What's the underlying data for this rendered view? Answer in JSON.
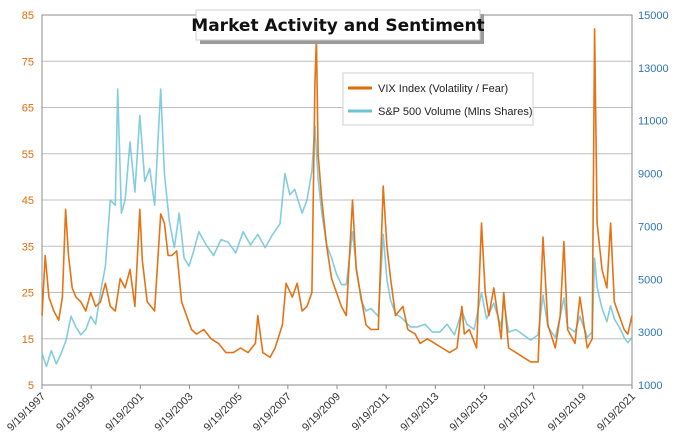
{
  "chart_data": {
    "type": "line",
    "title": "Market Activity and Sentiment",
    "xlabel": "",
    "ylabel_left": "",
    "ylabel_right": "",
    "x_ticks": [
      "9/19/1997",
      "9/19/1999",
      "9/19/2001",
      "9/19/2003",
      "9/19/2005",
      "9/19/2007",
      "9/19/2009",
      "9/19/2011",
      "9/19/2013",
      "9/19/2015",
      "9/19/2017",
      "9/19/2019",
      "9/19/2021"
    ],
    "x_range": [
      1997.72,
      2021.72
    ],
    "y_left": {
      "ticks": [
        5,
        15,
        25,
        35,
        45,
        55,
        65,
        75,
        85
      ],
      "range": [
        5,
        85
      ]
    },
    "y_right": {
      "ticks": [
        1000,
        3000,
        5000,
        7000,
        9000,
        11000,
        13000,
        15000
      ],
      "range": [
        1000,
        15000
      ]
    },
    "grid": true,
    "legend_position": "top-right-inside",
    "series": [
      {
        "name": "VIX Index (Volatility / Fear)",
        "axis": "left",
        "color": "#E36C0A",
        "points": [
          [
            1997.72,
            20
          ],
          [
            1997.85,
            33
          ],
          [
            1998.0,
            24
          ],
          [
            1998.2,
            21
          ],
          [
            1998.4,
            19
          ],
          [
            1998.55,
            24
          ],
          [
            1998.68,
            43
          ],
          [
            1998.8,
            33
          ],
          [
            1998.95,
            26
          ],
          [
            1999.1,
            24
          ],
          [
            1999.3,
            23
          ],
          [
            1999.5,
            21
          ],
          [
            1999.7,
            25
          ],
          [
            1999.9,
            22
          ],
          [
            2000.1,
            23
          ],
          [
            2000.3,
            27
          ],
          [
            2000.5,
            22
          ],
          [
            2000.7,
            21
          ],
          [
            2000.9,
            28
          ],
          [
            2001.1,
            26
          ],
          [
            2001.3,
            30
          ],
          [
            2001.5,
            22
          ],
          [
            2001.7,
            43
          ],
          [
            2001.8,
            32
          ],
          [
            2002.0,
            23
          ],
          [
            2002.3,
            21
          ],
          [
            2002.55,
            42
          ],
          [
            2002.7,
            40
          ],
          [
            2002.85,
            33
          ],
          [
            2003.0,
            33
          ],
          [
            2003.2,
            34
          ],
          [
            2003.4,
            23
          ],
          [
            2003.6,
            20
          ],
          [
            2003.8,
            17
          ],
          [
            2004.0,
            16
          ],
          [
            2004.3,
            17
          ],
          [
            2004.6,
            15
          ],
          [
            2004.9,
            14
          ],
          [
            2005.2,
            12
          ],
          [
            2005.5,
            12
          ],
          [
            2005.8,
            13
          ],
          [
            2006.1,
            12
          ],
          [
            2006.4,
            14
          ],
          [
            2006.5,
            20
          ],
          [
            2006.7,
            12
          ],
          [
            2007.0,
            11
          ],
          [
            2007.2,
            13
          ],
          [
            2007.5,
            18
          ],
          [
            2007.65,
            27
          ],
          [
            2007.9,
            24
          ],
          [
            2008.1,
            27
          ],
          [
            2008.3,
            21
          ],
          [
            2008.5,
            22
          ],
          [
            2008.7,
            25
          ],
          [
            2008.82,
            70
          ],
          [
            2008.88,
            80
          ],
          [
            2008.95,
            55
          ],
          [
            2009.1,
            45
          ],
          [
            2009.3,
            35
          ],
          [
            2009.5,
            28
          ],
          [
            2009.7,
            25
          ],
          [
            2009.9,
            22
          ],
          [
            2010.1,
            20
          ],
          [
            2010.35,
            45
          ],
          [
            2010.5,
            30
          ],
          [
            2010.7,
            24
          ],
          [
            2010.9,
            18
          ],
          [
            2011.1,
            17
          ],
          [
            2011.4,
            17
          ],
          [
            2011.6,
            48
          ],
          [
            2011.75,
            35
          ],
          [
            2011.9,
            28
          ],
          [
            2012.1,
            20
          ],
          [
            2012.4,
            22
          ],
          [
            2012.6,
            17
          ],
          [
            2012.9,
            16
          ],
          [
            2013.1,
            14
          ],
          [
            2013.4,
            15
          ],
          [
            2013.7,
            14
          ],
          [
            2014.0,
            13
          ],
          [
            2014.3,
            12
          ],
          [
            2014.6,
            13
          ],
          [
            2014.8,
            22
          ],
          [
            2014.9,
            16
          ],
          [
            2015.1,
            17
          ],
          [
            2015.4,
            13
          ],
          [
            2015.6,
            40
          ],
          [
            2015.75,
            25
          ],
          [
            2015.9,
            20
          ],
          [
            2016.1,
            26
          ],
          [
            2016.4,
            15
          ],
          [
            2016.5,
            25
          ],
          [
            2016.7,
            13
          ],
          [
            2017.0,
            12
          ],
          [
            2017.3,
            11
          ],
          [
            2017.6,
            10
          ],
          [
            2017.9,
            10
          ],
          [
            2018.1,
            37
          ],
          [
            2018.3,
            18
          ],
          [
            2018.6,
            13
          ],
          [
            2018.8,
            20
          ],
          [
            2018.95,
            36
          ],
          [
            2019.1,
            17
          ],
          [
            2019.4,
            14
          ],
          [
            2019.6,
            24
          ],
          [
            2019.9,
            13
          ],
          [
            2020.1,
            15
          ],
          [
            2020.2,
            82
          ],
          [
            2020.3,
            40
          ],
          [
            2020.5,
            30
          ],
          [
            2020.7,
            26
          ],
          [
            2020.85,
            40
          ],
          [
            2021.0,
            23
          ],
          [
            2021.2,
            20
          ],
          [
            2021.4,
            17
          ],
          [
            2021.55,
            16
          ],
          [
            2021.72,
            20
          ]
        ]
      },
      {
        "name": "S&P 500 Volume (Mlns Shares)",
        "axis": "right",
        "color": "#6EC3D9",
        "points": [
          [
            1997.72,
            2200
          ],
          [
            1997.9,
            1700
          ],
          [
            1998.1,
            2300
          ],
          [
            1998.3,
            1800
          ],
          [
            1998.5,
            2200
          ],
          [
            1998.7,
            2700
          ],
          [
            1998.9,
            3600
          ],
          [
            1999.1,
            3200
          ],
          [
            1999.3,
            2900
          ],
          [
            1999.5,
            3100
          ],
          [
            1999.7,
            3600
          ],
          [
            1999.9,
            3300
          ],
          [
            2000.1,
            4500
          ],
          [
            2000.3,
            5500
          ],
          [
            2000.5,
            8000
          ],
          [
            2000.7,
            7800
          ],
          [
            2000.8,
            12200
          ],
          [
            2000.95,
            7500
          ],
          [
            2001.1,
            8000
          ],
          [
            2001.3,
            10200
          ],
          [
            2001.5,
            8300
          ],
          [
            2001.7,
            11200
          ],
          [
            2001.9,
            8700
          ],
          [
            2002.1,
            9200
          ],
          [
            2002.3,
            7800
          ],
          [
            2002.55,
            12200
          ],
          [
            2002.7,
            9000
          ],
          [
            2002.9,
            7200
          ],
          [
            2003.1,
            6200
          ],
          [
            2003.3,
            7500
          ],
          [
            2003.5,
            5800
          ],
          [
            2003.7,
            5500
          ],
          [
            2003.9,
            6100
          ],
          [
            2004.1,
            6800
          ],
          [
            2004.4,
            6300
          ],
          [
            2004.7,
            5900
          ],
          [
            2005.0,
            6500
          ],
          [
            2005.3,
            6400
          ],
          [
            2005.6,
            6000
          ],
          [
            2005.9,
            6800
          ],
          [
            2006.2,
            6300
          ],
          [
            2006.5,
            6700
          ],
          [
            2006.8,
            6200
          ],
          [
            2007.1,
            6700
          ],
          [
            2007.4,
            7100
          ],
          [
            2007.6,
            9000
          ],
          [
            2007.8,
            8200
          ],
          [
            2008.0,
            8400
          ],
          [
            2008.3,
            7500
          ],
          [
            2008.5,
            8000
          ],
          [
            2008.7,
            9100
          ],
          [
            2008.82,
            10800
          ],
          [
            2008.95,
            8800
          ],
          [
            2009.1,
            7500
          ],
          [
            2009.3,
            6300
          ],
          [
            2009.5,
            5800
          ],
          [
            2009.7,
            5200
          ],
          [
            2009.9,
            4800
          ],
          [
            2010.1,
            4800
          ],
          [
            2010.35,
            6800
          ],
          [
            2010.5,
            5500
          ],
          [
            2010.7,
            4200
          ],
          [
            2010.9,
            3800
          ],
          [
            2011.1,
            3900
          ],
          [
            2011.4,
            3600
          ],
          [
            2011.6,
            6700
          ],
          [
            2011.75,
            5000
          ],
          [
            2011.9,
            4200
          ],
          [
            2012.1,
            3700
          ],
          [
            2012.4,
            3500
          ],
          [
            2012.7,
            3200
          ],
          [
            2013.0,
            3200
          ],
          [
            2013.3,
            3300
          ],
          [
            2013.6,
            3000
          ],
          [
            2013.9,
            3000
          ],
          [
            2014.2,
            3300
          ],
          [
            2014.5,
            2900
          ],
          [
            2014.8,
            3800
          ],
          [
            2015.0,
            3300
          ],
          [
            2015.3,
            3100
          ],
          [
            2015.6,
            4500
          ],
          [
            2015.8,
            3500
          ],
          [
            2016.1,
            4100
          ],
          [
            2016.4,
            3200
          ],
          [
            2016.5,
            4200
          ],
          [
            2016.7,
            3000
          ],
          [
            2017.0,
            3100
          ],
          [
            2017.3,
            2900
          ],
          [
            2017.6,
            2700
          ],
          [
            2017.9,
            2900
          ],
          [
            2018.1,
            4400
          ],
          [
            2018.3,
            3200
          ],
          [
            2018.6,
            2800
          ],
          [
            2018.8,
            3600
          ],
          [
            2018.95,
            4300
          ],
          [
            2019.1,
            3200
          ],
          [
            2019.4,
            3000
          ],
          [
            2019.6,
            3600
          ],
          [
            2019.9,
            2800
          ],
          [
            2020.1,
            3000
          ],
          [
            2020.2,
            5800
          ],
          [
            2020.3,
            4700
          ],
          [
            2020.5,
            3900
          ],
          [
            2020.7,
            3400
          ],
          [
            2020.85,
            4000
          ],
          [
            2021.0,
            3500
          ],
          [
            2021.2,
            3200
          ],
          [
            2021.4,
            2800
          ],
          [
            2021.55,
            2600
          ],
          [
            2021.72,
            2800
          ]
        ]
      }
    ]
  }
}
